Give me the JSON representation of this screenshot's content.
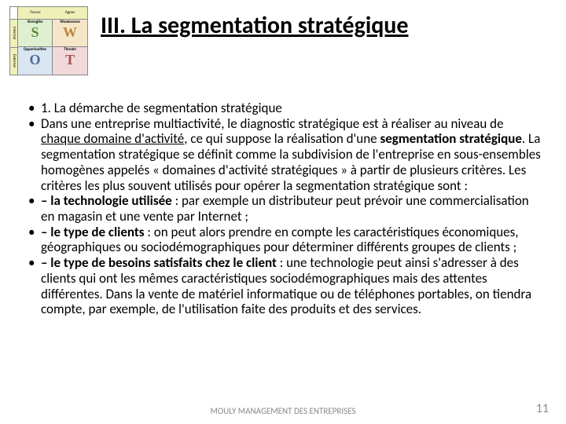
{
  "title": "III. La segmentation stratégique",
  "swot": {
    "top": [
      "Forces",
      "Agnes"
    ],
    "cells": [
      {
        "label": "Strengths",
        "letter": "S"
      },
      {
        "label": "Weaknesses",
        "letter": "W"
      },
      {
        "label": "Opportunities",
        "letter": "O"
      },
      {
        "label": "Threats",
        "letter": "T"
      }
    ],
    "side": [
      "Internal",
      "External"
    ]
  },
  "bullets": {
    "b0": "1. La démarche de segmentation stratégique",
    "b1_a": "Dans une entreprise multiactivité, le diagnostic stratégique est à réaliser au niveau de ",
    "b1_u": "chaque domaine d'activité",
    "b1_b": ", ce qui suppose la réalisation d'une ",
    "b1_bold": "segmentation stratégique",
    "b1_c": ". La segmentation stratégique se définit comme la subdivision de l'entreprise en sous-ensembles homogènes appelés « domaines d'activité stratégiques » à partir de plusieurs critères. Les critères les plus souvent utilisés pour opérer la segmentation stratégique sont :",
    "b2_bold": "– la technologie utilisée",
    "b2_rest": " : par exemple un distributeur peut prévoir une commercialisation en magasin et une vente par Internet ;",
    "b3_bold": "– le type de clients",
    "b3_rest": " : on peut alors prendre en compte les caractéristiques économiques, géographiques ou sociodémographiques pour déterminer différents groupes de clients ;",
    "b4_bold": "– le type de besoins satisfaits chez le client",
    "b4_rest": " : une technologie peut ainsi s'adresser à des clients qui ont les mêmes caractéristiques sociodémographiques mais des attentes différentes. Dans la vente de matériel informatique ou de téléphones portables, on tiendra compte, par exemple, de l'utilisation faite des produits et des services."
  },
  "footer": "MOULY MANAGEMENT DES ENTREPRISES",
  "page": "11"
}
